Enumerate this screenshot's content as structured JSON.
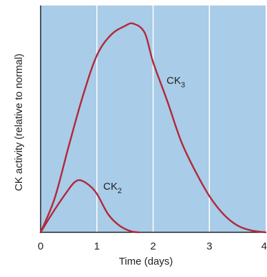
{
  "chart_data": {
    "type": "line",
    "title": "",
    "xlabel": "Time (days)",
    "ylabel": "CK activity (relative to normal)",
    "xlim": [
      0,
      4
    ],
    "ylim": [
      0,
      1
    ],
    "xticks": [
      "0",
      "1",
      "2",
      "3",
      "4"
    ],
    "yticks": [],
    "grid": "vertical lines at x = 1, 2, 3",
    "colors": {
      "plot_background": "#a9cce8",
      "gridline": "#ffffff",
      "series_line": "#b12a3c",
      "axis": "#222222"
    },
    "series": [
      {
        "name": "CK",
        "subscript": "3",
        "x": [
          0,
          0.25,
          0.5,
          0.75,
          1.0,
          1.25,
          1.5,
          1.65,
          1.85,
          2.0,
          2.25,
          2.5,
          2.75,
          3.0,
          3.25,
          3.5,
          3.75,
          4.0
        ],
        "y": [
          0,
          0.15,
          0.38,
          0.6,
          0.78,
          0.87,
          0.91,
          0.92,
          0.88,
          0.75,
          0.58,
          0.4,
          0.27,
          0.16,
          0.08,
          0.03,
          0.008,
          0
        ]
      },
      {
        "name": "CK",
        "subscript": "2",
        "x": [
          0,
          0.25,
          0.5,
          0.6,
          0.7,
          0.85,
          1.0,
          1.2,
          1.4,
          1.6,
          1.75
        ],
        "y": [
          0,
          0.1,
          0.19,
          0.22,
          0.23,
          0.21,
          0.17,
          0.08,
          0.03,
          0.005,
          0
        ]
      }
    ]
  }
}
